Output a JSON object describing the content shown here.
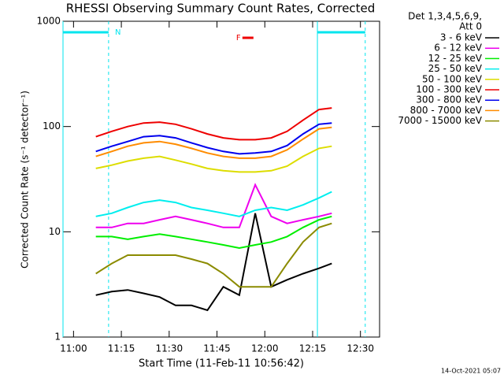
{
  "chart_data": {
    "type": "line",
    "title": "RHESSI Observing Summary Count Rates, Corrected",
    "x_label": "Start Time (11-Feb-11 10:56:42)",
    "y_label": "Corrected Count Rate (s⁻¹ detector⁻¹)",
    "legend_header": [
      "Det 1,3,4,5,6,9,",
      "Att 0"
    ],
    "legend": "outside-right",
    "footer": "14-Oct-2021 05:07",
    "log_y": true,
    "xlim": [
      "10:56:42",
      "12:36"
    ],
    "xticks": [
      "11:00",
      "11:15",
      "11:30",
      "11:45",
      "12:00",
      "12:15",
      "12:30"
    ],
    "ylim": [
      1,
      1000
    ],
    "yticks": [
      1,
      10,
      100,
      1000
    ],
    "night": [
      {
        "start": "10:56:42",
        "end": "11:11"
      },
      {
        "start": "12:16:30",
        "end": "12:31:30"
      }
    ],
    "annotations": [
      {
        "text": "N",
        "x": "11:13",
        "color": "#00e5ee"
      },
      {
        "text": "F",
        "x": "11:51",
        "color": "#ee0000"
      }
    ],
    "x": [
      "11:07",
      "11:12",
      "11:17",
      "11:22",
      "11:27",
      "11:32",
      "11:37",
      "11:42",
      "11:47",
      "11:52",
      "11:57",
      "12:02",
      "12:07",
      "12:12",
      "12:17",
      "12:21"
    ],
    "series": [
      {
        "name": "3 - 6 keV",
        "color": "#000000",
        "values": [
          2.5,
          2.7,
          2.8,
          2.6,
          2.4,
          2,
          2,
          1.8,
          3,
          2.5,
          15,
          3,
          3.5,
          4,
          4.5,
          5
        ]
      },
      {
        "name": "6 - 12 keV",
        "color": "#ee00ee",
        "values": [
          11,
          11,
          12,
          12,
          13,
          14,
          13,
          12,
          11,
          11,
          28,
          14,
          12,
          13,
          14,
          15
        ]
      },
      {
        "name": "12 - 25 keV",
        "color": "#00ee00",
        "values": [
          9,
          9,
          8.5,
          9,
          9.5,
          9,
          8.5,
          8,
          7.5,
          7,
          7.5,
          8,
          9,
          11,
          13,
          14
        ]
      },
      {
        "name": "25 - 50 keV",
        "color": "#00eeee",
        "values": [
          14,
          15,
          17,
          19,
          20,
          19,
          17,
          16,
          15,
          14,
          16,
          17,
          16,
          18,
          21,
          24
        ]
      },
      {
        "name": "50 - 100 keV",
        "color": "#dddd00",
        "values": [
          40,
          43,
          47,
          50,
          52,
          48,
          44,
          40,
          38,
          37,
          37,
          38,
          42,
          52,
          62,
          65
        ]
      },
      {
        "name": "100 - 300 keV",
        "color": "#ee0000",
        "values": [
          80,
          90,
          100,
          108,
          110,
          105,
          95,
          85,
          78,
          75,
          75,
          78,
          90,
          115,
          145,
          150
        ]
      },
      {
        "name": "300 - 800 keV",
        "color": "#0000ee",
        "values": [
          58,
          65,
          72,
          80,
          82,
          78,
          70,
          63,
          58,
          55,
          56,
          58,
          66,
          85,
          105,
          108
        ]
      },
      {
        "name": "800 - 7000 keV",
        "color": "#ff8c00",
        "values": [
          52,
          58,
          65,
          70,
          72,
          68,
          62,
          56,
          52,
          50,
          50,
          52,
          60,
          76,
          95,
          98
        ]
      },
      {
        "name": "7000 - 15000 keV",
        "color": "#8b8b00",
        "values": [
          4,
          5,
          6,
          6,
          6,
          6,
          5.5,
          5,
          4,
          3,
          3,
          3,
          5,
          8,
          11,
          12
        ]
      }
    ]
  }
}
